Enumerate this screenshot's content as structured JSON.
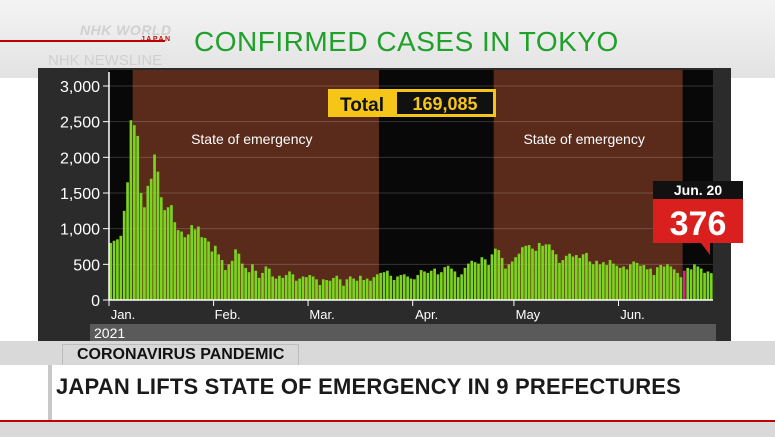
{
  "branding": {
    "logo_main": "NHK WORLD",
    "logo_sub": "JAPAN",
    "program": "NHK NEWSLINE"
  },
  "lower_third": {
    "category": "CORONAVIRUS PANDEMIC",
    "headline": "JAPAN LIFTS STATE OF EMERGENCY IN 9 PREFECTURES"
  },
  "colors": {
    "title_green": "#1fa12a",
    "bar_green": "#7ed321",
    "emergency_shade": "#5a2a1a",
    "highlight_red": "#d9201f",
    "total_yellow": "#f5c518",
    "brand_red": "#c00000"
  },
  "chart_data": {
    "type": "bar",
    "title": "CONFIRMED CASES IN TOKYO",
    "year_label": "2021",
    "yticks": [
      "0",
      "500",
      "1,000",
      "1,500",
      "2,000",
      "2,500",
      "3,000"
    ],
    "ylim": [
      0,
      3000
    ],
    "xticks": [
      {
        "label": "Jan.",
        "day": 0
      },
      {
        "label": "Feb.",
        "day": 31
      },
      {
        "label": "Mar.",
        "day": 59
      },
      {
        "label": "Apr.",
        "day": 90
      },
      {
        "label": "May",
        "day": 120
      },
      {
        "label": "Jun.",
        "day": 151
      }
    ],
    "total_label": "Total",
    "total_value": "169,085",
    "emergency_periods": [
      {
        "label": "State of emergency",
        "start_day": 7,
        "end_day": 80
      },
      {
        "label": "State of emergency",
        "start_day": 114,
        "end_day": 170
      }
    ],
    "highlight": {
      "label": "Jun. 20",
      "value": "376",
      "day": 170
    },
    "values": [
      800,
      830,
      850,
      900,
      1250,
      1650,
      2520,
      2450,
      2300,
      1500,
      1300,
      1600,
      1700,
      2040,
      1800,
      1440,
      1260,
      1300,
      1330,
      1090,
      980,
      960,
      880,
      920,
      1050,
      990,
      1030,
      880,
      870,
      820,
      680,
      760,
      640,
      560,
      420,
      500,
      550,
      710,
      650,
      510,
      450,
      390,
      500,
      410,
      310,
      380,
      470,
      440,
      330,
      300,
      340,
      310,
      350,
      400,
      360,
      270,
      300,
      330,
      320,
      350,
      330,
      290,
      210,
      290,
      280,
      270,
      310,
      340,
      290,
      200,
      290,
      330,
      300,
      270,
      340,
      280,
      300,
      270,
      320,
      360,
      380,
      390,
      410,
      340,
      280,
      330,
      350,
      360,
      330,
      300,
      290,
      350,
      420,
      400,
      380,
      410,
      440,
      360,
      390,
      460,
      480,
      440,
      400,
      320,
      360,
      450,
      510,
      550,
      530,
      510,
      600,
      570,
      490,
      640,
      720,
      700,
      590,
      440,
      500,
      540,
      600,
      650,
      740,
      760,
      770,
      720,
      690,
      800,
      760,
      780,
      780,
      700,
      640,
      520,
      560,
      620,
      650,
      610,
      630,
      590,
      640,
      660,
      540,
      500,
      550,
      500,
      530,
      490,
      560,
      510,
      480,
      450,
      470,
      430,
      500,
      540,
      520,
      480,
      490,
      430,
      440,
      350,
      460,
      490,
      470,
      500,
      470,
      430,
      380,
      320,
      410,
      450,
      430,
      500,
      470,
      440,
      380,
      400,
      376
    ]
  }
}
